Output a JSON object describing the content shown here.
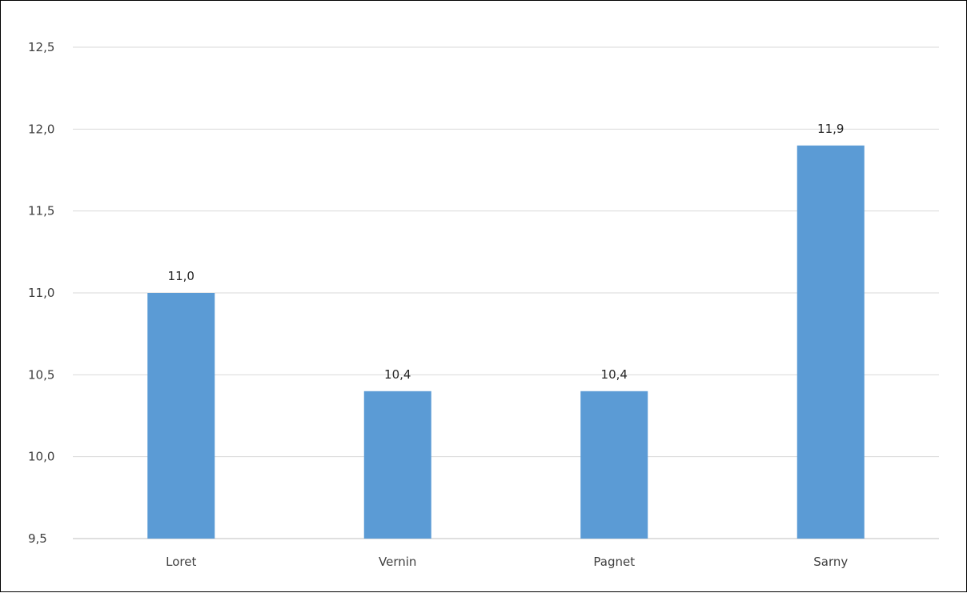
{
  "chart_data": {
    "type": "bar",
    "categories": [
      "Loret",
      "Vernin",
      "Pagnet",
      "Sarny"
    ],
    "values": [
      11.0,
      10.4,
      10.4,
      11.9
    ],
    "value_labels": [
      "11,0",
      "10,4",
      "10,4",
      "11,9"
    ],
    "title": "",
    "xlabel": "",
    "ylabel": "",
    "ylim": [
      9.5,
      12.5
    ],
    "y_ticks": [
      9.5,
      10.0,
      10.5,
      11.0,
      11.5,
      12.0,
      12.5
    ],
    "y_tick_labels": [
      "9,5",
      "10,0",
      "10,5",
      "11,0",
      "11,5",
      "12,0",
      "12,5"
    ],
    "grid": true,
    "legend": "none",
    "bar_color": "#5b9bd5"
  }
}
